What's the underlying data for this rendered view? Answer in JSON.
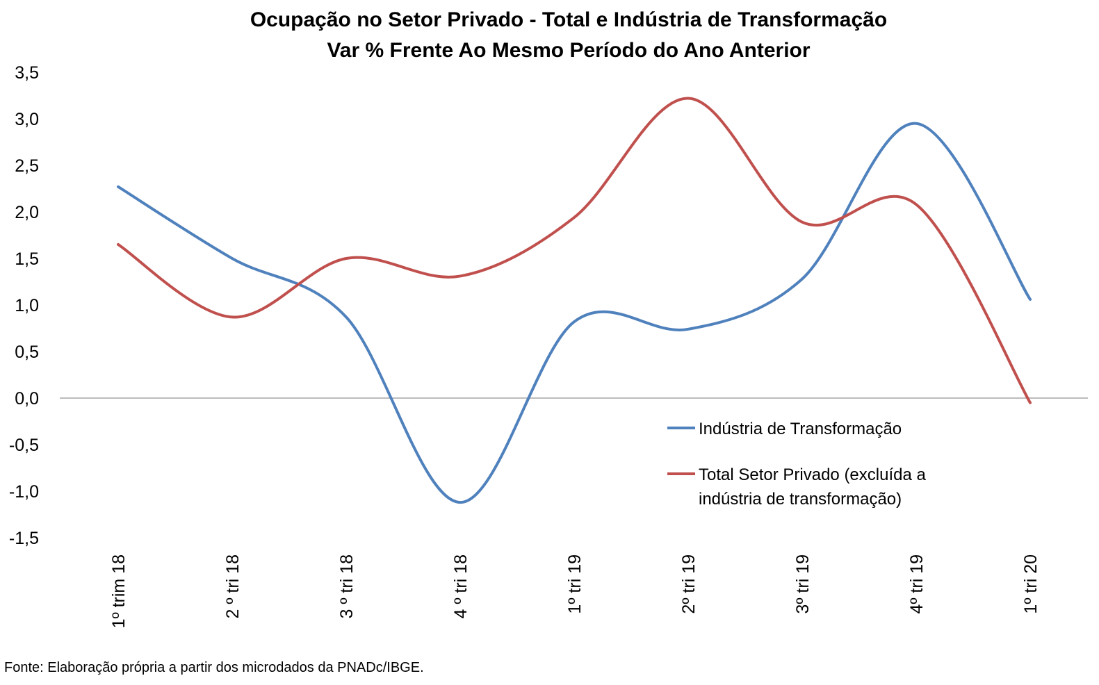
{
  "chart_data": {
    "type": "line",
    "title_lines": [
      "Ocupação no Setor Privado - Total e Indústria de Transformação",
      "Var % Frente Ao Mesmo Período do Ano Anterior"
    ],
    "xlabel": "",
    "ylabel": "",
    "categories": [
      "1º trim 18",
      "2 º tri 18",
      "3 º tri 18",
      "4 º tri 18",
      "1º tri 19",
      "2º tri 19",
      "3º tri 19",
      "4º tri 19",
      "1º tri 20"
    ],
    "y_ticks": [
      "3,5",
      "3,0",
      "2,5",
      "2,0",
      "1,5",
      "1,0",
      "0,5",
      "0,0",
      "-0,5",
      "-1,0",
      "-1,5"
    ],
    "ylim": [
      -1.5,
      3.5
    ],
    "grid": false,
    "legend_position": "lower-right",
    "series": [
      {
        "name": "Indústria de Transformação",
        "color": "#4F81BD",
        "values": [
          2.27,
          1.5,
          0.87,
          -1.12,
          0.82,
          0.74,
          1.28,
          2.95,
          1.06
        ]
      },
      {
        "name": "Total Setor Privado (excluída a indústria de transformação)",
        "legend_lines": [
          "Total Setor Privado (excluída a",
          "indústria de transformação)"
        ],
        "color": "#C0504D",
        "values": [
          1.65,
          0.87,
          1.5,
          1.31,
          1.94,
          3.22,
          1.89,
          2.08,
          -0.05
        ]
      }
    ]
  },
  "source_note": "Fonte: Elaboração própria a partir dos microdados da PNADc/IBGE."
}
